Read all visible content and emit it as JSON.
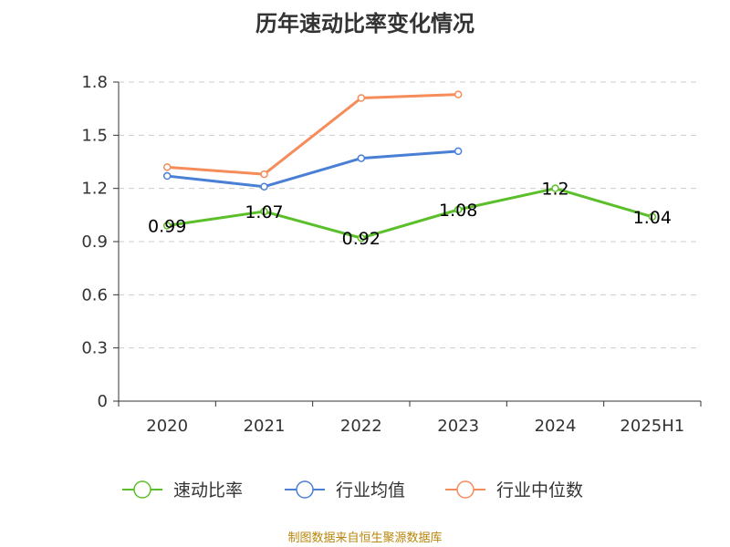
{
  "chart_data": {
    "type": "line",
    "title": "历年速动比率变化情况",
    "categories": [
      "2020",
      "2021",
      "2022",
      "2023",
      "2024",
      "2025H1"
    ],
    "ylim": [
      0,
      1.8
    ],
    "yticks": [
      "0",
      "0.3",
      "0.6",
      "0.9",
      "1.2",
      "1.5",
      "1.8"
    ],
    "grid": true,
    "legend_position": "bottom",
    "series": [
      {
        "name": "速动比率",
        "color": "#5bbf2a",
        "values": [
          0.99,
          1.07,
          0.92,
          1.08,
          1.2,
          1.04
        ],
        "labels": [
          "0.99",
          "1.07",
          "0.92",
          "1.08",
          "1.2",
          "1.04"
        ]
      },
      {
        "name": "行业均值",
        "color": "#4a7fd6",
        "values": [
          1.27,
          1.21,
          1.37,
          1.41,
          null,
          null
        ]
      },
      {
        "name": "行业中位数",
        "color": "#f58c5a",
        "values": [
          1.32,
          1.28,
          1.71,
          1.73,
          null,
          null
        ]
      }
    ]
  },
  "source": "制图数据来自恒生聚源数据库"
}
